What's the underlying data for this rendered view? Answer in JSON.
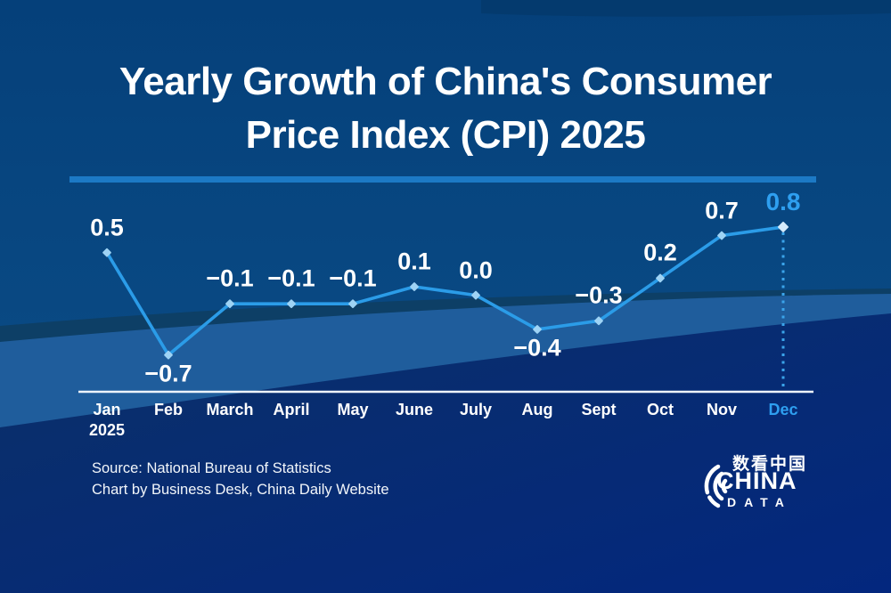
{
  "title": {
    "line1": "Yearly Growth of China's Consumer",
    "line2": "Price Index (CPI) 2025"
  },
  "chart_data": {
    "type": "line",
    "title": "Yearly Growth of China's Consumer Price Index (CPI) 2025",
    "categories": [
      "Jan",
      "Feb",
      "March",
      "April",
      "May",
      "June",
      "July",
      "Aug",
      "Sept",
      "Oct",
      "Nov",
      "Dec"
    ],
    "x_sub_label": {
      "category": "Jan",
      "text": "2025"
    },
    "values": [
      0.5,
      -0.7,
      -0.1,
      -0.1,
      -0.1,
      0.1,
      0.0,
      -0.4,
      -0.3,
      0.2,
      0.7,
      0.8
    ],
    "point_labels": [
      "0.5",
      "−0.7",
      "−0.1",
      "−0.1",
      "−0.1",
      "0.1",
      "0.0",
      "−0.4",
      "−0.3",
      "0.2",
      "0.7",
      "0.8"
    ],
    "label_positions": [
      "above",
      "below",
      "above",
      "above",
      "above",
      "above",
      "above",
      "below",
      "above",
      "above",
      "above",
      "above"
    ],
    "highlight_index": 11,
    "ylim": [
      -0.9,
      1.0
    ],
    "xlabel": "",
    "ylabel": "",
    "grid": false,
    "legend": false,
    "marker": "diamond",
    "highlight_guide": "dashed vertical line from Dec point to x-axis"
  },
  "source": {
    "line1": "Source: National Bureau of Statistics",
    "line2": "Chart by Business Desk, China Daily Website"
  },
  "logo": {
    "chinese": "数看中国",
    "line1": "CHINA",
    "line2": "DATA"
  },
  "colors": {
    "background": "#07457f",
    "band_light": "#1f5d9c",
    "band_teal": "#0d3f66",
    "band_navy_left": "#0b3068",
    "band_navy_right": "#03277e",
    "divider": "#1c79c5",
    "line": "#2b9ce8",
    "marker": "#9ed3f5",
    "marker_highlight": "#d4eafb",
    "dashed_guide": "#3ba4ea",
    "axis": "#edf3fa",
    "text": "#ffffff",
    "highlight_text": "#2e9ff0"
  }
}
